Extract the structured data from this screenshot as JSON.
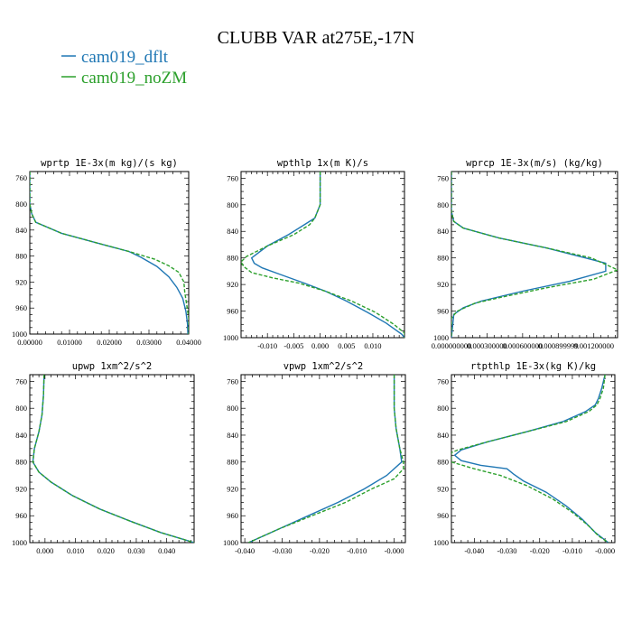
{
  "title": "CLUBB VAR at275E,-17N",
  "legend": [
    {
      "label": "cam019_dflt",
      "color": "#1f77b4"
    },
    {
      "label": "cam019_noZM",
      "color": "#2ca02c"
    }
  ],
  "chart_data": [
    {
      "type": "line",
      "title": "wprtp  1E-3x(m kg)/(s kg)",
      "xlim": [
        0,
        0.04
      ],
      "ylim": [
        1000,
        750
      ],
      "xticks": [
        0,
        0.01,
        0.02,
        0.03,
        0.04
      ],
      "xtick_labels": [
        "0.00000",
        "0.01000",
        "0.02000",
        "0.03000",
        "0.04000"
      ],
      "yticks": [
        760,
        800,
        840,
        880,
        920,
        960,
        1000
      ],
      "series": [
        {
          "name": "cam019_dflt",
          "color": "#1f77b4",
          "dashed": false,
          "points": [
            [
              0,
              750
            ],
            [
              0,
              780
            ],
            [
              0,
              800
            ],
            [
              0.0005,
              815
            ],
            [
              0.0015,
              828
            ],
            [
              0.008,
              845
            ],
            [
              0.017,
              860
            ],
            [
              0.025,
              873
            ],
            [
              0.028,
              882
            ],
            [
              0.032,
              896
            ],
            [
              0.035,
              912
            ],
            [
              0.037,
              928
            ],
            [
              0.0385,
              945
            ],
            [
              0.0393,
              965
            ],
            [
              0.0397,
              985
            ],
            [
              0.0398,
              1000
            ]
          ]
        },
        {
          "name": "cam019_noZM",
          "color": "#2ca02c",
          "dashed": true,
          "points": [
            [
              0,
              750
            ],
            [
              0,
              780
            ],
            [
              0,
              800
            ],
            [
              0.0005,
              815
            ],
            [
              0.0015,
              828
            ],
            [
              0.008,
              845
            ],
            [
              0.017,
              860
            ],
            [
              0.025,
              873
            ],
            [
              0.0315,
              885
            ],
            [
              0.035,
              895
            ],
            [
              0.0375,
              905
            ],
            [
              0.0388,
              920
            ],
            [
              0.039,
              935
            ],
            [
              0.0395,
              955
            ],
            [
              0.04,
              975
            ],
            [
              0.04,
              1000
            ]
          ]
        }
      ]
    },
    {
      "type": "line",
      "title": "wpthlp  1x(m K)/s",
      "xlim": [
        -0.015,
        0.016
      ],
      "ylim": [
        1000,
        750
      ],
      "xticks": [
        -0.01,
        -0.005,
        0,
        0.005,
        0.01
      ],
      "xtick_labels": [
        "-0.010",
        "-0.005",
        "0.000",
        "0.005",
        "0.010"
      ],
      "yticks": [
        760,
        800,
        840,
        880,
        920,
        960,
        1000
      ],
      "series": [
        {
          "name": "cam019_dflt",
          "color": "#1f77b4",
          "dashed": false,
          "points": [
            [
              0,
              750
            ],
            [
              0,
              800
            ],
            [
              -0.001,
              820
            ],
            [
              -0.003,
              830
            ],
            [
              -0.006,
              845
            ],
            [
              -0.01,
              862
            ],
            [
              -0.013,
              880
            ],
            [
              -0.0125,
              888
            ],
            [
              -0.011,
              895
            ],
            [
              -0.0075,
              905
            ],
            [
              -0.003,
              918
            ],
            [
              0.001,
              930
            ],
            [
              0.005,
              945
            ],
            [
              0.009,
              962
            ],
            [
              0.0125,
              978
            ],
            [
              0.0155,
              995
            ],
            [
              0.016,
              1000
            ]
          ]
        },
        {
          "name": "cam019_noZM",
          "color": "#2ca02c",
          "dashed": true,
          "points": [
            [
              0,
              750
            ],
            [
              0,
              800
            ],
            [
              -0.001,
              820
            ],
            [
              -0.002,
              830
            ],
            [
              -0.005,
              845
            ],
            [
              -0.01,
              862
            ],
            [
              -0.014,
              878
            ],
            [
              -0.015,
              886
            ],
            [
              -0.0145,
              893
            ],
            [
              -0.013,
              902
            ],
            [
              -0.009,
              910
            ],
            [
              -0.004,
              918
            ],
            [
              0.001,
              930
            ],
            [
              0.006,
              945
            ],
            [
              0.0105,
              962
            ],
            [
              0.014,
              980
            ],
            [
              0.016,
              993
            ],
            [
              0.016,
              1000
            ]
          ]
        }
      ]
    },
    {
      "type": "line",
      "title": "wprcp  1E-3x(m/s) (kg/kg)",
      "xlim": [
        0,
        0.0014
      ],
      "ylim": [
        1000,
        750
      ],
      "xticks": [
        0,
        0.0003,
        0.0006,
        0.0009,
        0.0012
      ],
      "xtick_labels": [
        "0.000000000",
        "0.000300000",
        "0.000600000",
        "0.000899999",
        "0.001200000"
      ],
      "yticks": [
        760,
        800,
        840,
        880,
        920,
        960,
        1000
      ],
      "series": [
        {
          "name": "cam019_dflt",
          "color": "#1f77b4",
          "dashed": false,
          "points": [
            [
              0,
              750
            ],
            [
              0,
              790
            ],
            [
              0,
              810
            ],
            [
              2e-05,
              825
            ],
            [
              0.0001,
              835
            ],
            [
              0.0004,
              850
            ],
            [
              0.0008,
              865
            ],
            [
              0.00113,
              880
            ],
            [
              0.0013,
              888
            ],
            [
              0.0013,
              900
            ],
            [
              0.001,
              915
            ],
            [
              0.0006,
              930
            ],
            [
              0.00025,
              945
            ],
            [
              0.0001,
              955
            ],
            [
              2e-05,
              965
            ],
            [
              0,
              1000
            ]
          ]
        },
        {
          "name": "cam019_noZM",
          "color": "#2ca02c",
          "dashed": true,
          "points": [
            [
              0,
              750
            ],
            [
              0,
              790
            ],
            [
              0,
              810
            ],
            [
              2e-05,
              825
            ],
            [
              0.0001,
              835
            ],
            [
              0.0004,
              850
            ],
            [
              0.0008,
              865
            ],
            [
              0.00118,
              880
            ],
            [
              0.0014,
              898
            ],
            [
              0.0012,
              912
            ],
            [
              0.0008,
              925
            ],
            [
              0.00045,
              938
            ],
            [
              0.0002,
              948
            ],
            [
              5e-05,
              960
            ],
            [
              0,
              970
            ],
            [
              0,
              1000
            ]
          ]
        }
      ]
    },
    {
      "type": "line",
      "title": "upwp  1xm^2/s^2",
      "xlim": [
        -0.005,
        0.049
      ],
      "ylim": [
        1000,
        750
      ],
      "xticks": [
        0,
        0.01,
        0.02,
        0.03,
        0.04
      ],
      "xtick_labels": [
        "0.000",
        "0.010",
        "0.020",
        "0.030",
        "0.040"
      ],
      "yticks": [
        760,
        800,
        840,
        880,
        920,
        960,
        1000
      ],
      "series": [
        {
          "name": "cam019_dflt",
          "color": "#1f77b4",
          "dashed": false,
          "points": [
            [
              -0.0003,
              750
            ],
            [
              -0.0005,
              780
            ],
            [
              -0.001,
              810
            ],
            [
              -0.002,
              835
            ],
            [
              -0.0035,
              860
            ],
            [
              -0.004,
              880
            ],
            [
              -0.002,
              895
            ],
            [
              0.002,
              910
            ],
            [
              0.009,
              930
            ],
            [
              0.018,
              950
            ],
            [
              0.028,
              968
            ],
            [
              0.038,
              985
            ],
            [
              0.049,
              1000
            ]
          ]
        },
        {
          "name": "cam019_noZM",
          "color": "#2ca02c",
          "dashed": true,
          "points": [
            [
              -0.0003,
              750
            ],
            [
              -0.0005,
              780
            ],
            [
              -0.001,
              810
            ],
            [
              -0.002,
              835
            ],
            [
              -0.0035,
              860
            ],
            [
              -0.004,
              880
            ],
            [
              -0.002,
              895
            ],
            [
              0.002,
              910
            ],
            [
              0.009,
              930
            ],
            [
              0.018,
              950
            ],
            [
              0.028,
              968
            ],
            [
              0.038,
              985
            ],
            [
              0.049,
              1000
            ]
          ]
        }
      ]
    },
    {
      "type": "line",
      "title": "vpwp  1xm^2/s^2",
      "xlim": [
        -0.041,
        0.003
      ],
      "ylim": [
        1000,
        750
      ],
      "xticks": [
        -0.04,
        -0.03,
        -0.02,
        -0.01,
        0
      ],
      "xtick_labels": [
        "-0.040",
        "-0.030",
        "-0.020",
        "-0.010",
        "-0.000"
      ],
      "yticks": [
        760,
        800,
        840,
        880,
        920,
        960,
        1000
      ],
      "series": [
        {
          "name": "cam019_dflt",
          "color": "#1f77b4",
          "dashed": false,
          "points": [
            [
              0,
              750
            ],
            [
              0,
              800
            ],
            [
              0.0005,
              830
            ],
            [
              0.0015,
              860
            ],
            [
              0.002,
              880
            ],
            [
              -0.002,
              900
            ],
            [
              -0.008,
              920
            ],
            [
              -0.015,
              940
            ],
            [
              -0.023,
              960
            ],
            [
              -0.031,
              980
            ],
            [
              -0.039,
              1000
            ]
          ]
        },
        {
          "name": "cam019_noZM",
          "color": "#2ca02c",
          "dashed": true,
          "points": [
            [
              0,
              750
            ],
            [
              0,
              800
            ],
            [
              0.0005,
              830
            ],
            [
              0.0015,
              860
            ],
            [
              0.0025,
              880
            ],
            [
              0.0025,
              890
            ],
            [
              0,
              905
            ],
            [
              -0.006,
              920
            ],
            [
              -0.013,
              940
            ],
            [
              -0.022,
              960
            ],
            [
              -0.031,
              980
            ],
            [
              -0.039,
              1000
            ]
          ]
        }
      ]
    },
    {
      "type": "line",
      "title": "rtpthlp  1E-3x(kg K)/kg",
      "xlim": [
        -0.047,
        0.003
      ],
      "ylim": [
        1000,
        750
      ],
      "xticks": [
        -0.04,
        -0.03,
        -0.02,
        -0.01,
        0
      ],
      "xtick_labels": [
        "-0.040",
        "-0.030",
        "-0.020",
        "-0.010",
        "-0.000"
      ],
      "yticks": [
        760,
        800,
        840,
        880,
        920,
        960,
        1000
      ],
      "series": [
        {
          "name": "cam019_dflt",
          "color": "#1f77b4",
          "dashed": false,
          "points": [
            [
              0,
              750
            ],
            [
              -0.001,
              770
            ],
            [
              -0.002,
              785
            ],
            [
              -0.003,
              795
            ],
            [
              -0.006,
              805
            ],
            [
              -0.013,
              820
            ],
            [
              -0.024,
              835
            ],
            [
              -0.036,
              850
            ],
            [
              -0.044,
              862
            ],
            [
              -0.046,
              870
            ],
            [
              -0.044,
              878
            ],
            [
              -0.038,
              885
            ],
            [
              -0.03,
              890
            ],
            [
              -0.028,
              898
            ],
            [
              -0.025,
              908
            ],
            [
              -0.018,
              925
            ],
            [
              -0.012,
              945
            ],
            [
              -0.007,
              965
            ],
            [
              -0.003,
              985
            ],
            [
              0.001,
              1000
            ]
          ]
        },
        {
          "name": "cam019_noZM",
          "color": "#2ca02c",
          "dashed": true,
          "points": [
            [
              0,
              750
            ],
            [
              -0.0005,
              770
            ],
            [
              -0.0015,
              785
            ],
            [
              -0.0025,
              795
            ],
            [
              -0.005,
              805
            ],
            [
              -0.012,
              820
            ],
            [
              -0.024,
              835
            ],
            [
              -0.036,
              850
            ],
            [
              -0.045,
              862
            ],
            [
              -0.047,
              866
            ],
            [
              -0.047,
              880
            ],
            [
              -0.04,
              890
            ],
            [
              -0.032,
              900
            ],
            [
              -0.024,
              915
            ],
            [
              -0.016,
              935
            ],
            [
              -0.01,
              955
            ],
            [
              -0.005,
              975
            ],
            [
              -0.002,
              990
            ],
            [
              0.001,
              1000
            ]
          ]
        }
      ]
    }
  ]
}
